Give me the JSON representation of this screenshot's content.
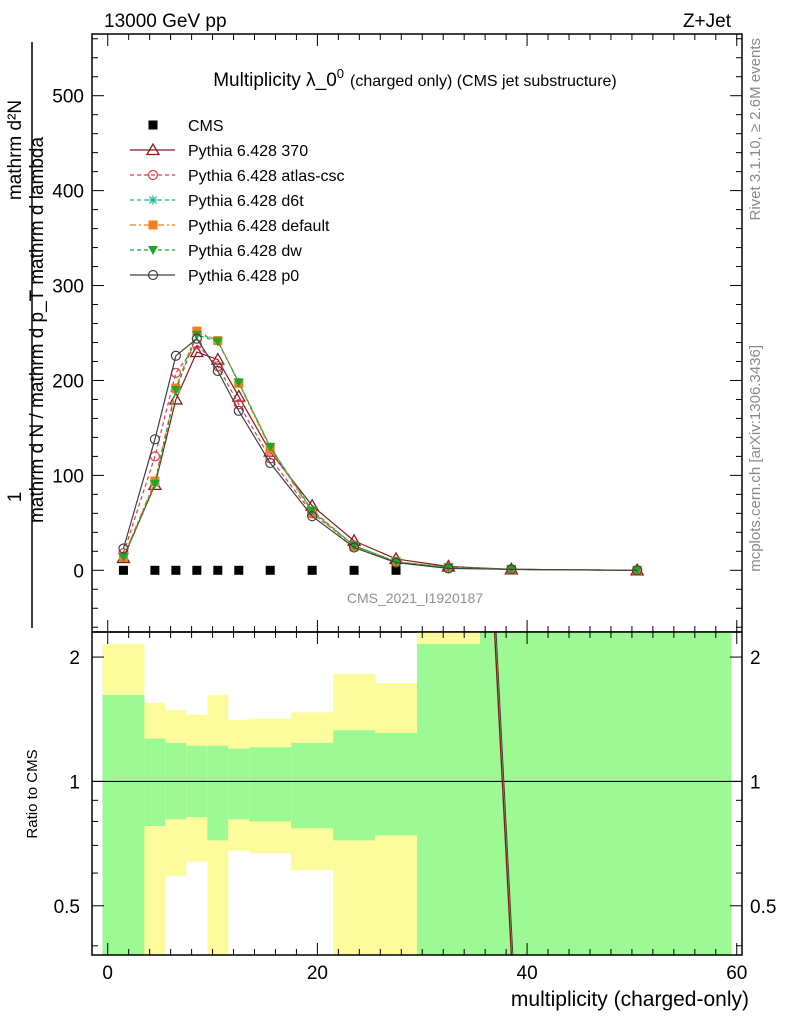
{
  "header": {
    "left": "13000 GeV pp",
    "right": "Z+Jet"
  },
  "side_labels": {
    "rivet": "Rivet 3.1.10, ≥ 2.6M events",
    "mcplots": "mcplots.cern.ch [arXiv:1306.3436]"
  },
  "chart_data": [
    {
      "type": "line",
      "title_main": "Multiplicity λ_0",
      "title_sup": "0",
      "title_suffix": "(charged only) (CMS jet substructure)",
      "ylabel_numerator": "1",
      "ylabel_denominator": "mathrm d N / mathrm d p",
      "ylabel_full": "mathrm d N / mathrm d p_T mathrm d lambda",
      "ylabel_top": "mathrm d²N",
      "ylabel_mid": "mathrm d p_T mathrm d lambda",
      "analysis_label": "CMS_2021_I1920187",
      "xlim": [
        -1.5,
        60.5
      ],
      "ylim": [
        -65,
        565
      ],
      "yticks": [
        0,
        100,
        200,
        300,
        400,
        500
      ],
      "ytick_labels": [
        "0",
        "100",
        "200",
        "300",
        "400",
        "500"
      ],
      "legend_position": "top-left",
      "series": [
        {
          "name": "CMS",
          "color": "#000000",
          "marker": "square",
          "dash": "none",
          "x": [
            1.5,
            4.5,
            6.5,
            8.5,
            10.5,
            12.5,
            15.5,
            19.5,
            23.5,
            27.5
          ],
          "y": [
            0,
            0,
            0,
            0,
            0,
            0,
            0,
            0,
            0,
            0
          ]
        },
        {
          "name": "Pythia 6.428 370",
          "color": "#8b1a1a",
          "marker": "triangle-open",
          "dash": "none",
          "x": [
            1.5,
            4.5,
            6.5,
            8.5,
            10.5,
            12.5,
            15.5,
            19.5,
            23.5,
            27.5,
            32.5,
            38.5,
            50.5
          ],
          "y": [
            13,
            90,
            180,
            230,
            222,
            183,
            125,
            68,
            31,
            12,
            4,
            1,
            0
          ]
        },
        {
          "name": "Pythia 6.428 atlas-csc",
          "color": "#e8384f",
          "marker": "circle-open",
          "dash": "4,3",
          "x": [
            1.5,
            4.5,
            6.5,
            8.5,
            10.5,
            12.5,
            15.5,
            19.5,
            23.5,
            27.5,
            32.5,
            38.5,
            50.5
          ],
          "y": [
            18,
            120,
            208,
            238,
            215,
            175,
            118,
            60,
            26,
            9,
            3,
            1,
            0
          ]
        },
        {
          "name": "Pythia 6.428 d6t",
          "color": "#17b890",
          "marker": "asterisk",
          "dash": "4,3",
          "x": [
            1.5,
            4.5,
            6.5,
            8.5,
            10.5,
            12.5,
            15.5,
            19.5,
            23.5,
            27.5,
            32.5,
            38.5,
            50.5
          ],
          "y": [
            14,
            92,
            190,
            250,
            242,
            198,
            130,
            62,
            26,
            9,
            3,
            1,
            0
          ]
        },
        {
          "name": "Pythia 6.428 default",
          "color": "#f07f1e",
          "marker": "square",
          "dash": "6,3,2,3",
          "x": [
            1.5,
            4.5,
            6.5,
            8.5,
            10.5,
            12.5,
            15.5,
            19.5,
            23.5,
            27.5,
            32.5,
            38.5,
            50.5
          ],
          "y": [
            14,
            94,
            192,
            252,
            242,
            197,
            128,
            61,
            25,
            9,
            3,
            1,
            0
          ]
        },
        {
          "name": "Pythia 6.428 dw",
          "color": "#1fa52c",
          "marker": "triangle-down",
          "dash": "4,3",
          "x": [
            1.5,
            4.5,
            6.5,
            8.5,
            10.5,
            12.5,
            15.5,
            19.5,
            23.5,
            27.5,
            32.5,
            38.5,
            50.5
          ],
          "y": [
            14,
            91,
            190,
            248,
            241,
            198,
            130,
            63,
            26,
            9,
            3,
            1,
            0
          ]
        },
        {
          "name": "Pythia 6.428 p0",
          "color": "#404040",
          "marker": "circle-open",
          "dash": "none",
          "x": [
            1.5,
            4.5,
            6.5,
            8.5,
            10.5,
            12.5,
            15.5,
            19.5,
            23.5,
            27.5,
            32.5,
            38.5,
            50.5
          ],
          "y": [
            23,
            138,
            226,
            244,
            210,
            168,
            113,
            57,
            24,
            8,
            2,
            1,
            0
          ]
        }
      ]
    },
    {
      "type": "area",
      "ylabel": "Ratio to CMS",
      "xlabel": "multiplicity (charged-only)",
      "xlim": [
        -1.5,
        60.5
      ],
      "ylim": [
        0.38,
        2.3
      ],
      "yticks": [
        0.5,
        1,
        2
      ],
      "ytick_labels": [
        "0.5",
        "1",
        "2"
      ],
      "xticks": [
        0,
        20,
        40,
        60
      ],
      "xtick_labels": [
        "0",
        "20",
        "40",
        "60"
      ],
      "reference_line": 1,
      "band_colors": {
        "inner": "#9cf993",
        "outer": "#fcfc9c"
      },
      "bins": [
        {
          "lo": -0.5,
          "hi": 3.5,
          "inner": [
            0.38,
            1.62
          ],
          "outer": [
            0.38,
            2.15
          ]
        },
        {
          "lo": 3.5,
          "hi": 5.5,
          "inner": [
            0.78,
            1.27
          ],
          "outer": [
            0.38,
            1.55
          ]
        },
        {
          "lo": 5.5,
          "hi": 7.5,
          "inner": [
            0.81,
            1.24
          ],
          "outer": [
            0.59,
            1.49
          ]
        },
        {
          "lo": 7.5,
          "hi": 9.5,
          "inner": [
            0.82,
            1.22
          ],
          "outer": [
            0.64,
            1.45
          ]
        },
        {
          "lo": 9.5,
          "hi": 11.5,
          "inner": [
            0.72,
            1.22
          ],
          "outer": [
            0.38,
            1.62
          ]
        },
        {
          "lo": 11.5,
          "hi": 13.5,
          "inner": [
            0.81,
            1.2
          ],
          "outer": [
            0.68,
            1.41
          ]
        },
        {
          "lo": 13.5,
          "hi": 17.5,
          "inner": [
            0.8,
            1.21
          ],
          "outer": [
            0.67,
            1.42
          ]
        },
        {
          "lo": 17.5,
          "hi": 21.5,
          "inner": [
            0.77,
            1.24
          ],
          "outer": [
            0.61,
            1.47
          ]
        },
        {
          "lo": 21.5,
          "hi": 25.5,
          "inner": [
            0.72,
            1.33
          ],
          "outer": [
            0.38,
            1.82
          ]
        },
        {
          "lo": 25.5,
          "hi": 29.5,
          "inner": [
            0.74,
            1.31
          ],
          "outer": [
            0.38,
            1.73
          ]
        },
        {
          "lo": 29.5,
          "hi": 59.5,
          "inner": [
            0.38,
            2.3
          ],
          "outer": [
            0.38,
            2.3
          ]
        }
      ],
      "top_yellow_bins": [
        {
          "lo": 29.5,
          "hi": 35.5
        }
      ],
      "ratio_line": {
        "x": [
          36.9,
          38.5
        ],
        "y": [
          2.3,
          0.38
        ],
        "color": "#8b1a1a"
      }
    }
  ]
}
